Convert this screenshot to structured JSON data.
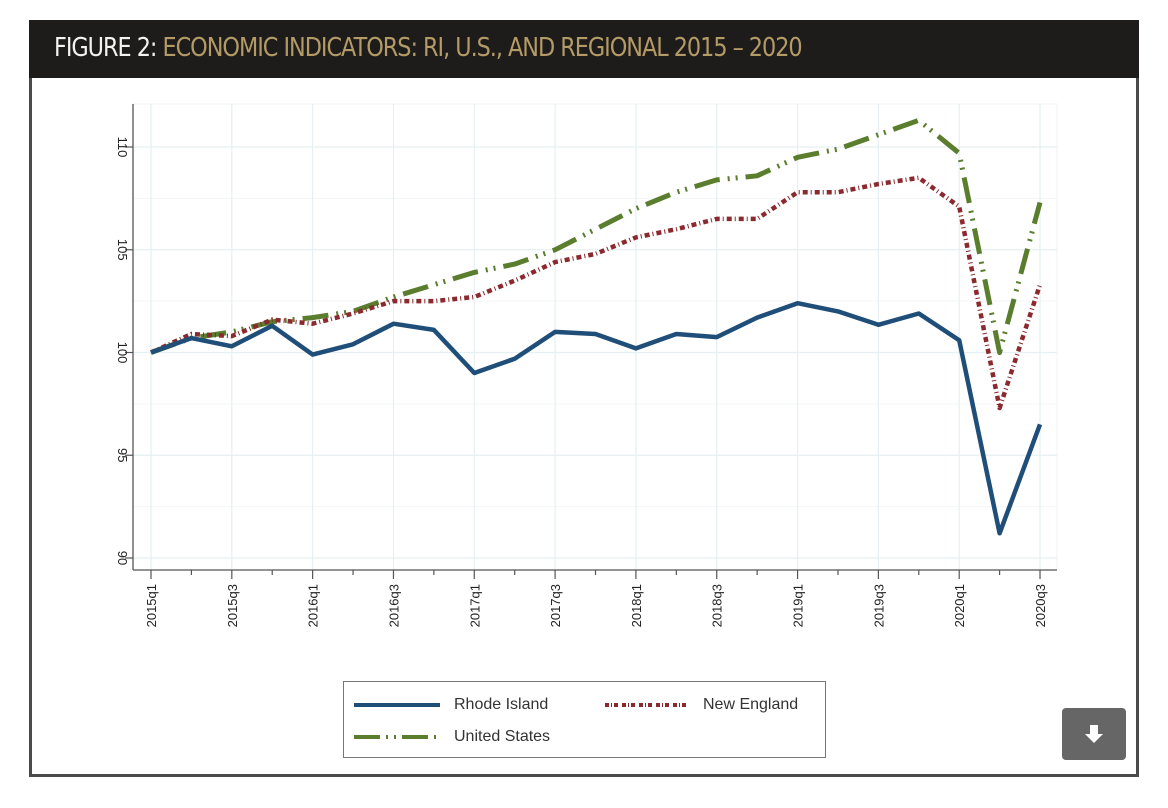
{
  "header": {
    "prefix": "FIGURE 2:",
    "title": "ECONOMIC INDICATORS: RI, U.S., AND REGIONAL 2015 – 2020"
  },
  "download_button": {
    "icon": "download-arrow-icon",
    "color": "#666666"
  },
  "chart_data": {
    "type": "line",
    "title": "FIGURE 2: ECONOMIC INDICATORS: RI, U.S., AND REGIONAL 2015 – 2020",
    "xlabel": "",
    "ylabel": "",
    "ylim": [
      89.7,
      111.5
    ],
    "yticks": [
      90,
      95,
      100,
      105,
      110
    ],
    "ytick_labels": [
      "90",
      "95",
      "100",
      "105",
      "110"
    ],
    "x": [
      "2015q1",
      "2015q2",
      "2015q3",
      "2015q4",
      "2016q1",
      "2016q2",
      "2016q3",
      "2016q4",
      "2017q1",
      "2017q2",
      "2017q3",
      "2017q4",
      "2018q1",
      "2018q2",
      "2018q3",
      "2018q4",
      "2019q1",
      "2019q2",
      "2019q3",
      "2019q4",
      "2020q1",
      "2020q2",
      "2020q3"
    ],
    "xtick_labels": [
      "2015q1",
      "2015q3",
      "2016q1",
      "2016q3",
      "2017q1",
      "2017q3",
      "2018q1",
      "2018q3",
      "2019q1",
      "2019q3",
      "2020q1",
      "2020q3"
    ],
    "grid": true,
    "legend_position": "bottom",
    "series": [
      {
        "name": "Rhode Island",
        "color": "#1f4e79",
        "style": "solid",
        "values": [
          100.0,
          100.7,
          100.3,
          101.3,
          99.9,
          100.4,
          101.4,
          101.1,
          99.0,
          99.7,
          101.0,
          100.9,
          100.2,
          100.9,
          100.75,
          101.7,
          102.4,
          102.0,
          101.35,
          101.9,
          100.6,
          91.2,
          96.5
        ]
      },
      {
        "name": "New England",
        "color": "#8b2a2e",
        "style": "dotted",
        "values": [
          100.0,
          100.9,
          100.8,
          101.6,
          101.4,
          101.9,
          102.5,
          102.5,
          102.7,
          103.5,
          104.4,
          104.8,
          105.6,
          106.0,
          106.5,
          106.5,
          107.8,
          107.8,
          108.2,
          108.5,
          107.1,
          97.3,
          103.3
        ]
      },
      {
        "name": "United States",
        "color": "#5a7d2e",
        "style": "dash-dot",
        "values": [
          100.0,
          100.7,
          101.0,
          101.5,
          101.7,
          102.0,
          102.7,
          103.3,
          103.9,
          104.3,
          105.0,
          106.0,
          107.0,
          107.8,
          108.4,
          108.6,
          109.5,
          109.9,
          110.6,
          111.3,
          109.7,
          100.0,
          107.3
        ]
      }
    ]
  }
}
